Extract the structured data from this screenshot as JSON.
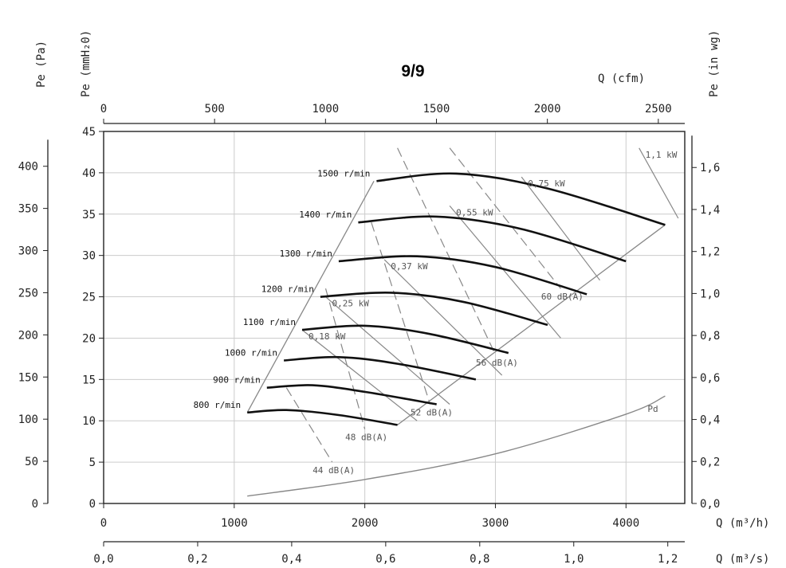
{
  "page_title": "9/9",
  "chart_data": {
    "type": "line",
    "title": "9/9",
    "x_axis_bottom": {
      "label": "Q (m³/h)",
      "min": 0,
      "max": 4450,
      "ticks": [
        0,
        1000,
        2000,
        3000,
        4000
      ]
    },
    "x_axis_bottom2": {
      "label": "Q (m³/s)",
      "ticks": [
        0.0,
        0.2,
        0.4,
        0.6,
        0.8,
        1.0,
        1.2
      ],
      "tick_labels": [
        "0,0",
        "0,2",
        "0,4",
        "0,6",
        "0,8",
        "1,0",
        "1,2"
      ]
    },
    "x_axis_top": {
      "label": "Q (cfm)",
      "ticks": [
        0,
        500,
        1000,
        1500,
        2000,
        2500
      ]
    },
    "y_axis_inner": {
      "label": "Pe (mmH₂0)",
      "min": 0,
      "max": 45,
      "ticks": [
        0,
        5,
        10,
        15,
        20,
        25,
        30,
        35,
        40,
        45
      ]
    },
    "y_axis_outer": {
      "label": "Pe (Pa)",
      "ticks": [
        0,
        50,
        100,
        150,
        200,
        250,
        300,
        350,
        400
      ]
    },
    "y_axis_right": {
      "label": "Pe (in wg)",
      "ticks": [
        0.0,
        0.2,
        0.4,
        0.6,
        0.8,
        1.0,
        1.2,
        1.4,
        1.6
      ],
      "tick_labels": [
        "0,0",
        "0,2",
        "0,4",
        "0,6",
        "0,8",
        "1,0",
        "1,2",
        "1,4",
        "1,6"
      ]
    },
    "grid": true,
    "speed_curves": [
      {
        "name": "800 r/min",
        "points": [
          [
            1100,
            11.0
          ],
          [
            1400,
            11.3
          ],
          [
            1800,
            10.7
          ],
          [
            2250,
            9.5
          ]
        ]
      },
      {
        "name": "900 r/min",
        "points": [
          [
            1250,
            14.0
          ],
          [
            1600,
            14.3
          ],
          [
            2000,
            13.5
          ],
          [
            2550,
            12.0
          ]
        ]
      },
      {
        "name": "1000 r/min",
        "points": [
          [
            1380,
            17.3
          ],
          [
            1800,
            17.7
          ],
          [
            2250,
            16.9
          ],
          [
            2850,
            15.0
          ]
        ]
      },
      {
        "name": "1100 r/min",
        "points": [
          [
            1520,
            21.0
          ],
          [
            2000,
            21.5
          ],
          [
            2500,
            20.5
          ],
          [
            3100,
            18.2
          ]
        ]
      },
      {
        "name": "1200 r/min",
        "points": [
          [
            1660,
            25.0
          ],
          [
            2200,
            25.5
          ],
          [
            2750,
            24.4
          ],
          [
            3400,
            21.6
          ]
        ]
      },
      {
        "name": "1300 r/min",
        "points": [
          [
            1800,
            29.3
          ],
          [
            2400,
            29.9
          ],
          [
            3000,
            28.6
          ],
          [
            3700,
            25.3
          ]
        ]
      },
      {
        "name": "1400 r/min",
        "points": [
          [
            1950,
            34.0
          ],
          [
            2550,
            34.7
          ],
          [
            3200,
            33.2
          ],
          [
            4000,
            29.3
          ]
        ]
      },
      {
        "name": "1500 r/min",
        "points": [
          [
            2090,
            39.0
          ],
          [
            2700,
            39.9
          ],
          [
            3400,
            38.1
          ],
          [
            4300,
            33.7
          ]
        ]
      }
    ],
    "operating_envelope": {
      "left": [
        [
          1100,
          11.0
        ],
        [
          2070,
          39.0
        ]
      ],
      "right": [
        [
          2250,
          9.5
        ],
        [
          4300,
          33.7
        ]
      ]
    },
    "power_lines": [
      {
        "name": "0,18 kW",
        "points": [
          [
            1520,
            21.0
          ],
          [
            2400,
            10.0
          ]
        ]
      },
      {
        "name": "0,25 kW",
        "points": [
          [
            1700,
            25.0
          ],
          [
            2650,
            12.0
          ]
        ]
      },
      {
        "name": "0,37 kW",
        "points": [
          [
            2150,
            29.5
          ],
          [
            3050,
            15.5
          ]
        ]
      },
      {
        "name": "0,55 kW",
        "points": [
          [
            2650,
            36.0
          ],
          [
            3500,
            20.0
          ]
        ]
      },
      {
        "name": "0,75 kW",
        "points": [
          [
            3200,
            39.5
          ],
          [
            3800,
            27.0
          ]
        ]
      },
      {
        "name": "1,1 kW",
        "points": [
          [
            4100,
            43.0
          ],
          [
            4400,
            34.5
          ]
        ]
      }
    ],
    "noise_lines": [
      {
        "name": "44 dB(A)",
        "points": [
          [
            1400,
            14.0
          ],
          [
            1750,
            5.0
          ]
        ]
      },
      {
        "name": "48 dB(A)",
        "points": [
          [
            1700,
            26.0
          ],
          [
            2000,
            9.0
          ]
        ]
      },
      {
        "name": "52 dB(A)",
        "points": [
          [
            2050,
            34.0
          ],
          [
            2500,
            12.0
          ]
        ]
      },
      {
        "name": "56 dB(A)",
        "points": [
          [
            2250,
            43.0
          ],
          [
            3000,
            18.0
          ]
        ]
      },
      {
        "name": "60 dB(A)",
        "points": [
          [
            2650,
            43.0
          ],
          [
            3500,
            26.0
          ]
        ]
      }
    ],
    "pd_curve": {
      "name": "Pd",
      "points": [
        [
          1100,
          0.9
        ],
        [
          2000,
          2.9
        ],
        [
          3000,
          6.0
        ],
        [
          4000,
          10.8
        ],
        [
          4300,
          13.0
        ]
      ]
    },
    "envelope_label": "r/min"
  },
  "colors": {
    "heavy": "#111111",
    "thin": "#888888",
    "grid": "#cccccc",
    "axis": "#222222"
  }
}
